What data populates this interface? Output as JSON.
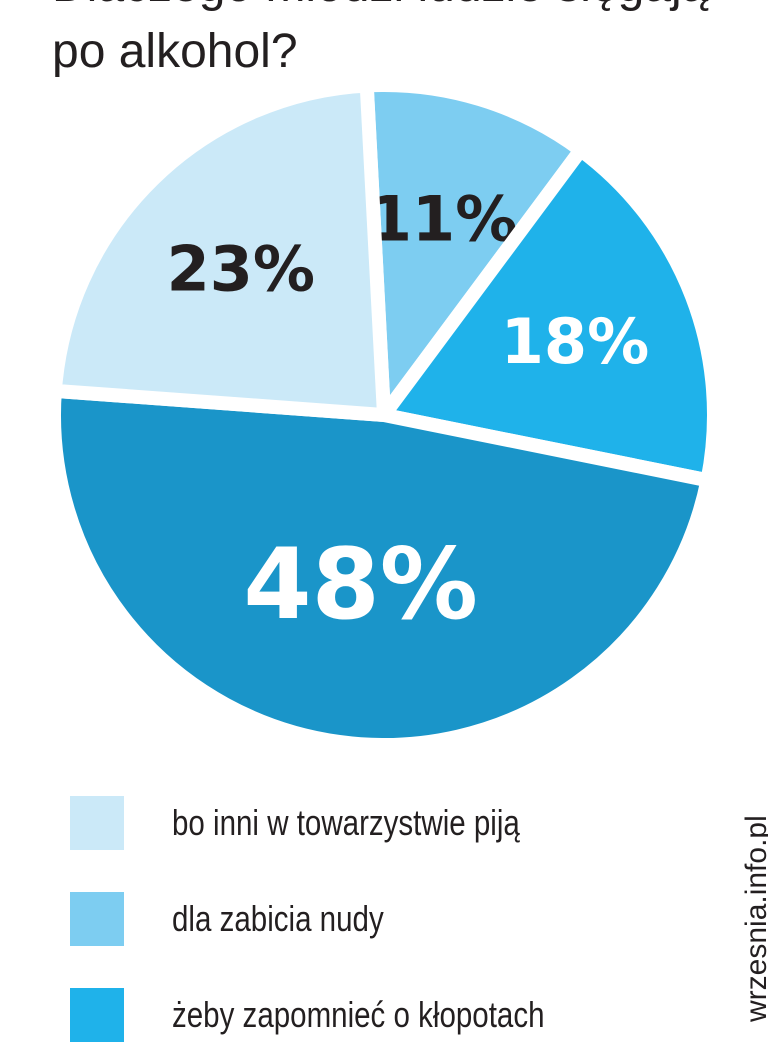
{
  "title_partial": "Dlaczego młodzi ludzie sięgają",
  "title": "po alkohol?",
  "chart_data": {
    "type": "pie",
    "title": "po alkohol?",
    "slices": [
      {
        "label": "dla zabicia nudy",
        "value": 11,
        "text": "11%",
        "color": "#7dcdf1",
        "label_color": "#231f20"
      },
      {
        "label": "żeby zapomnieć o kłopotach",
        "value": 18,
        "text": "18%",
        "color": "#1fb2ea",
        "label_color": "#ffffff"
      },
      {
        "label": "",
        "value": 48,
        "text": "48%",
        "color": "#1a95c9",
        "label_color": "#ffffff"
      },
      {
        "label": "bo inni w towarzystwie piją",
        "value": 23,
        "text": "23%",
        "color": "#cbe9f8",
        "label_color": "#231f20"
      }
    ],
    "legend": [
      {
        "label": "bo inni w towarzystwie piją",
        "color": "#cbe9f8"
      },
      {
        "label": "dla zabicia nudy",
        "color": "#7dcdf1"
      },
      {
        "label": "żeby zapomnieć o kłopotach",
        "color": "#1fb2ea"
      }
    ],
    "legend_position": "bottom"
  },
  "watermark": "wrzesnia.info.pl"
}
